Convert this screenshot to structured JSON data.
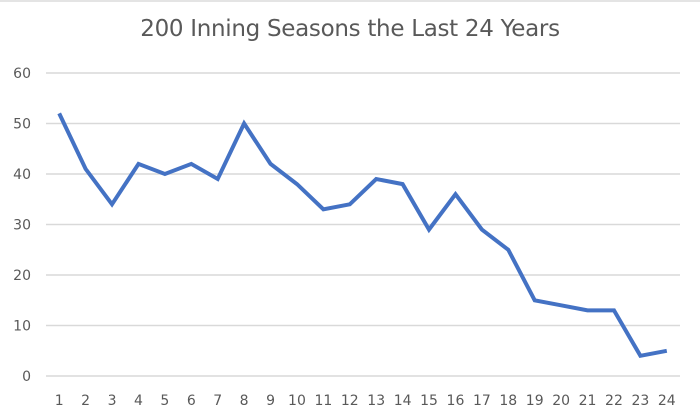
{
  "chart_data": {
    "type": "line",
    "title": "200 Inning Seasons the Last 24 Years",
    "xlabel": "",
    "ylabel": "",
    "categories": [
      "1",
      "2",
      "3",
      "4",
      "5",
      "6",
      "7",
      "8",
      "9",
      "10",
      "11",
      "12",
      "13",
      "14",
      "15",
      "16",
      "17",
      "18",
      "19",
      "20",
      "21",
      "22",
      "23",
      "24"
    ],
    "series": [
      {
        "name": "200 Inning Seasons",
        "color": "#4472c4",
        "values": [
          52,
          41,
          34,
          42,
          40,
          42,
          39,
          50,
          42,
          38,
          33,
          34,
          39,
          38,
          29,
          36,
          29,
          25,
          15,
          14,
          13,
          13,
          4,
          5
        ]
      }
    ],
    "ylim": [
      0,
      60
    ],
    "yticks": [
      0,
      10,
      20,
      30,
      40,
      50,
      60
    ],
    "grid": true,
    "legend": "none"
  },
  "colors": {
    "line": "#4472c4",
    "grid": "#d9d9d9",
    "text": "#595959"
  }
}
